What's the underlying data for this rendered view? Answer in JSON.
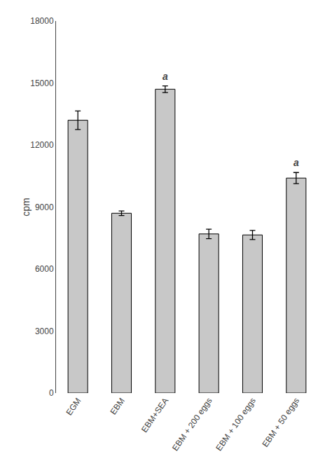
{
  "chart_data": {
    "type": "bar",
    "ylabel": "cpm",
    "categories": [
      "EGM",
      "EBM",
      "EBM+SEA",
      "EBM + 200 eggs",
      "EBM + 100 eggs",
      "EBM + 50 eggs"
    ],
    "values": [
      13200,
      8700,
      14700,
      7700,
      7650,
      10400
    ],
    "errors": [
      450,
      110,
      160,
      230,
      220,
      270
    ],
    "color": "#c8c8c8",
    "annotations": [
      {
        "category": "EBM+SEA",
        "text": "a"
      },
      {
        "category": "EBM + 50 eggs",
        "text": "a"
      }
    ],
    "ylim": [
      0,
      18000
    ],
    "yticks": [
      0,
      3000,
      6000,
      9000,
      12000,
      15000,
      18000
    ],
    "grid": false
  }
}
